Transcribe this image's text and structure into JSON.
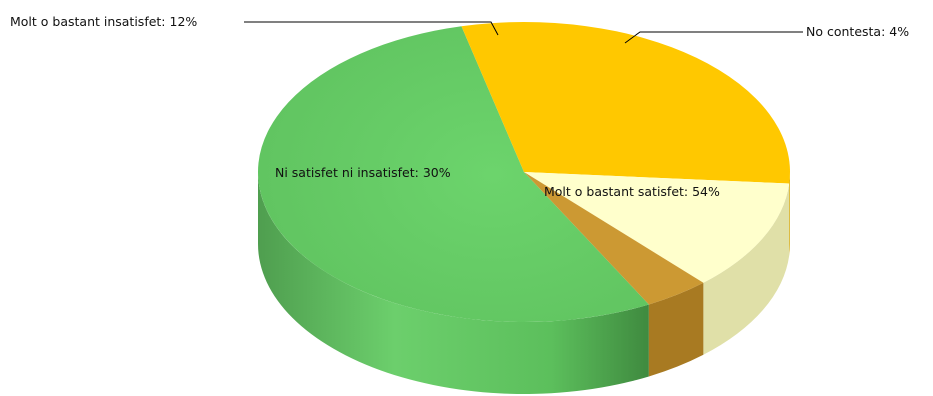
{
  "chart_data": {
    "type": "pie",
    "style": "3d",
    "slices": [
      {
        "label": "Molt o bastant satisfet: 54%",
        "value": 54,
        "color": "#66cc66",
        "side_color": "#4fa84f"
      },
      {
        "label": "Ni satisfet ni insatisfet: 30%",
        "value": 30,
        "color": "#ffc800",
        "side_color": "#d4a100"
      },
      {
        "label": "Molt o bastant insatisfet: 12%",
        "value": 12,
        "color": "#ffffcc",
        "side_color": "#e0e0a8"
      },
      {
        "label": "No contesta: 4%",
        "value": 4,
        "color": "#cc9933",
        "side_color": "#a87a22"
      }
    ]
  }
}
